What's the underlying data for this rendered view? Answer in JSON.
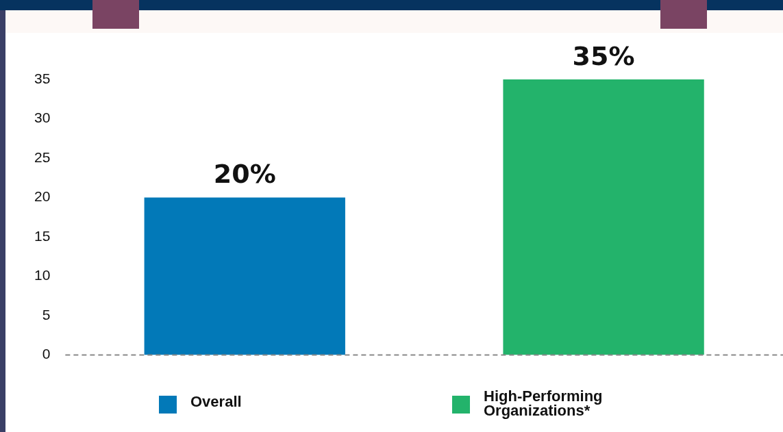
{
  "chart_data": {
    "type": "bar",
    "categories": [
      null,
      null
    ],
    "series": [
      {
        "name": "Overall",
        "color": "#0279b8",
        "values": [
          20,
          null
        ],
        "value_labels": [
          "20%",
          null
        ]
      },
      {
        "name": "High-Performing Organizations*",
        "color": "#23b36b",
        "values": [
          null,
          35
        ],
        "value_labels": [
          null,
          "35%"
        ]
      }
    ],
    "ylim": [
      0,
      35
    ],
    "yticks": [
      0,
      5,
      10,
      15,
      20,
      25,
      30,
      35
    ],
    "grid": false,
    "legend": "bottom"
  }
}
